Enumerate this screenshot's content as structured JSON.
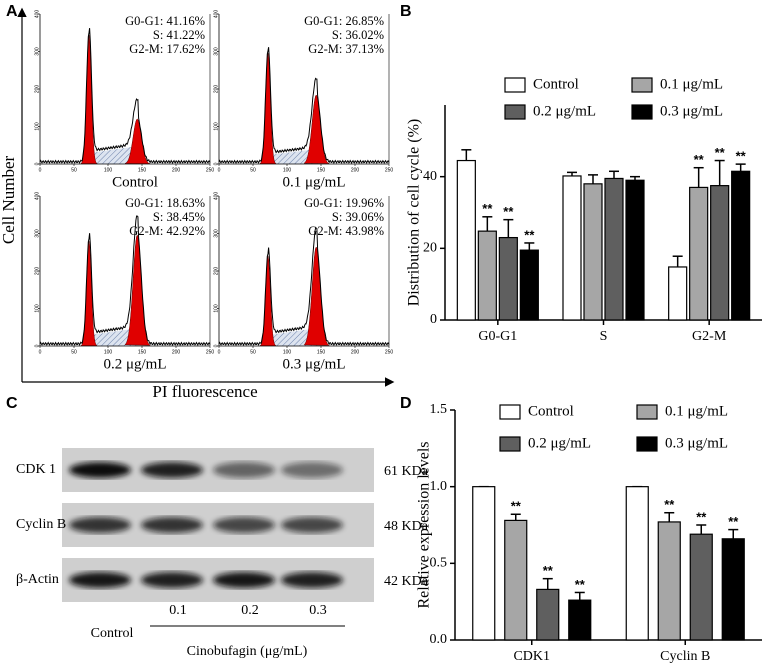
{
  "panel_labels": [
    "A",
    "B",
    "C",
    "D"
  ],
  "panel_a": {
    "y_label": "Cell Number",
    "x_label": "PI fluorescence",
    "xlim": [
      0,
      250
    ],
    "ylim": [
      0,
      400
    ],
    "xticks": [
      0,
      50,
      100,
      150,
      200,
      250
    ],
    "yticks": [
      0,
      100,
      200,
      300,
      400
    ],
    "plots": [
      {
        "name": "Control",
        "stats": [
          "G0-G1: 41.16%",
          "S: 41.22%",
          "G2-M: 17.62%"
        ]
      },
      {
        "name": "0.1 μg/mL",
        "stats": [
          "G0-G1: 26.85%",
          "S: 36.02%",
          "G2-M: 37.13%"
        ]
      },
      {
        "name": "0.2 μg/mL",
        "stats": [
          "G0-G1: 18.63%",
          "S: 38.45%",
          "G2-M: 42.92%"
        ]
      },
      {
        "name": "0.3 μg/mL",
        "stats": [
          "G0-G1: 19.96%",
          "S: 39.06%",
          "G2-M: 43.98%"
        ]
      }
    ]
  },
  "panel_c": {
    "rows": [
      {
        "name": "CDK 1",
        "size": "61 KDa"
      },
      {
        "name": "Cyclin B",
        "size": "48 KDa"
      },
      {
        "name": "β-Actin",
        "size": "42 KDa"
      }
    ],
    "lanes": [
      "Control",
      "0.1",
      "0.2",
      "0.3"
    ],
    "treatment": "Cinobufagin (μg/mL)"
  },
  "chart_data": [
    {
      "type": "bar",
      "y_label": "Distribution of cell cycle (%)",
      "categories": [
        "G0-G1",
        "S",
        "G2-M"
      ],
      "ylim": [
        0,
        60
      ],
      "yticks": [
        0,
        20,
        40
      ],
      "series": [
        {
          "name": "Control",
          "color": "#ffffff",
          "values": [
            44.5,
            40.2,
            14.8
          ],
          "errors": [
            3,
            1,
            3
          ],
          "sig": [
            null,
            null,
            null
          ]
        },
        {
          "name": "0.1 μg/mL",
          "color": "#a6a6a6",
          "values": [
            24.8,
            38,
            37
          ],
          "errors": [
            4,
            2.5,
            5.5
          ],
          "sig": [
            "**",
            null,
            "**"
          ]
        },
        {
          "name": "0.2 μg/mL",
          "color": "#5f5f5f",
          "values": [
            23,
            39.5,
            37.5
          ],
          "errors": [
            5,
            2,
            7
          ],
          "sig": [
            "**",
            null,
            "**"
          ]
        },
        {
          "name": "0.3 μg/mL",
          "color": "#000000",
          "values": [
            19.5,
            39,
            41.5
          ],
          "errors": [
            2,
            1,
            2
          ],
          "sig": [
            "**",
            null,
            "**"
          ]
        }
      ]
    },
    {
      "type": "bar",
      "y_label": "Relative expression levels",
      "categories": [
        "CDK1",
        "Cyclin B"
      ],
      "ylim": [
        0,
        1.5
      ],
      "yticks": [
        {
          "value": 0,
          "label": "0.0"
        },
        {
          "value": 0.5,
          "label": "0.5"
        },
        {
          "value": 1,
          "label": "1.0"
        },
        {
          "value": 1.5,
          "label": "1.5"
        }
      ],
      "series": [
        {
          "name": "Control",
          "color": "#ffffff",
          "values": [
            1,
            1
          ],
          "errors": [
            0,
            0
          ],
          "sig": [
            null,
            null
          ]
        },
        {
          "name": "0.1 μg/mL",
          "color": "#a6a6a6",
          "values": [
            0.78,
            0.77
          ],
          "errors": [
            0.04,
            0.06
          ],
          "sig": [
            "**",
            "**"
          ]
        },
        {
          "name": "0.2 μg/mL",
          "color": "#5f5f5f",
          "values": [
            0.33,
            0.69
          ],
          "errors": [
            0.07,
            0.06
          ],
          "sig": [
            "**",
            "**"
          ]
        },
        {
          "name": "0.3 μg/mL",
          "color": "#000000",
          "values": [
            0.26,
            0.66
          ],
          "errors": [
            0.05,
            0.06
          ],
          "sig": [
            "**",
            "**"
          ]
        }
      ]
    }
  ]
}
